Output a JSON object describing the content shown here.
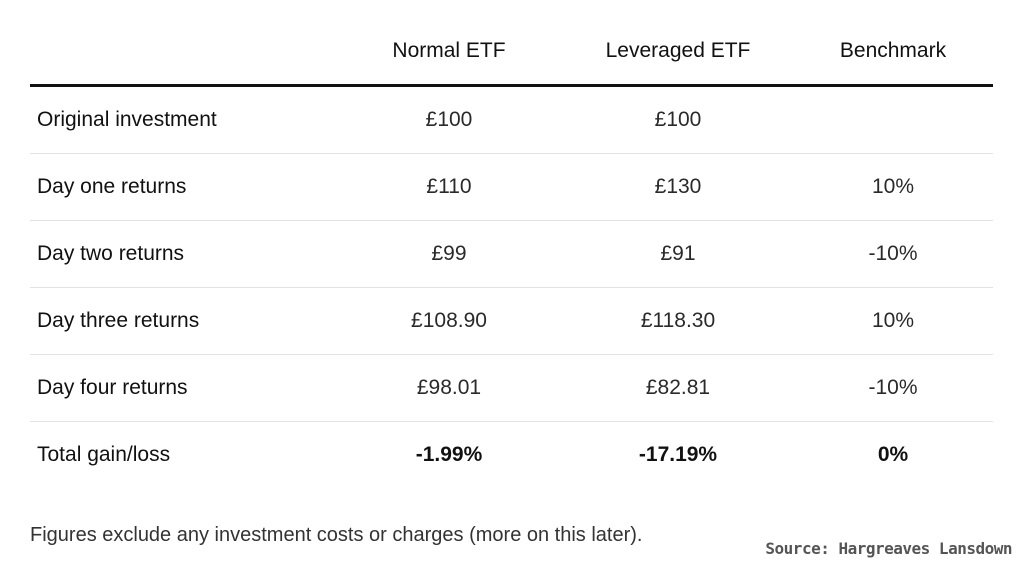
{
  "table": {
    "headers": [
      "",
      "Normal ETF",
      "Leveraged ETF",
      "Benchmark"
    ],
    "rows": [
      [
        "Original investment",
        "£100",
        "£100",
        ""
      ],
      [
        "Day one returns",
        "£110",
        "£130",
        "10%"
      ],
      [
        "Day two returns",
        "£99",
        "£91",
        "-10%"
      ],
      [
        "Day three returns",
        "£108.90",
        "£118.30",
        "10%"
      ],
      [
        "Day four returns",
        "£98.01",
        "£82.81",
        "-10%"
      ],
      [
        "Total gain/loss",
        "-1.99%",
        "-17.19%",
        "0%"
      ]
    ]
  },
  "footnote": "Figures exclude any investment costs or charges (more on this later).",
  "source": "Source: Hargreaves Lansdown"
}
